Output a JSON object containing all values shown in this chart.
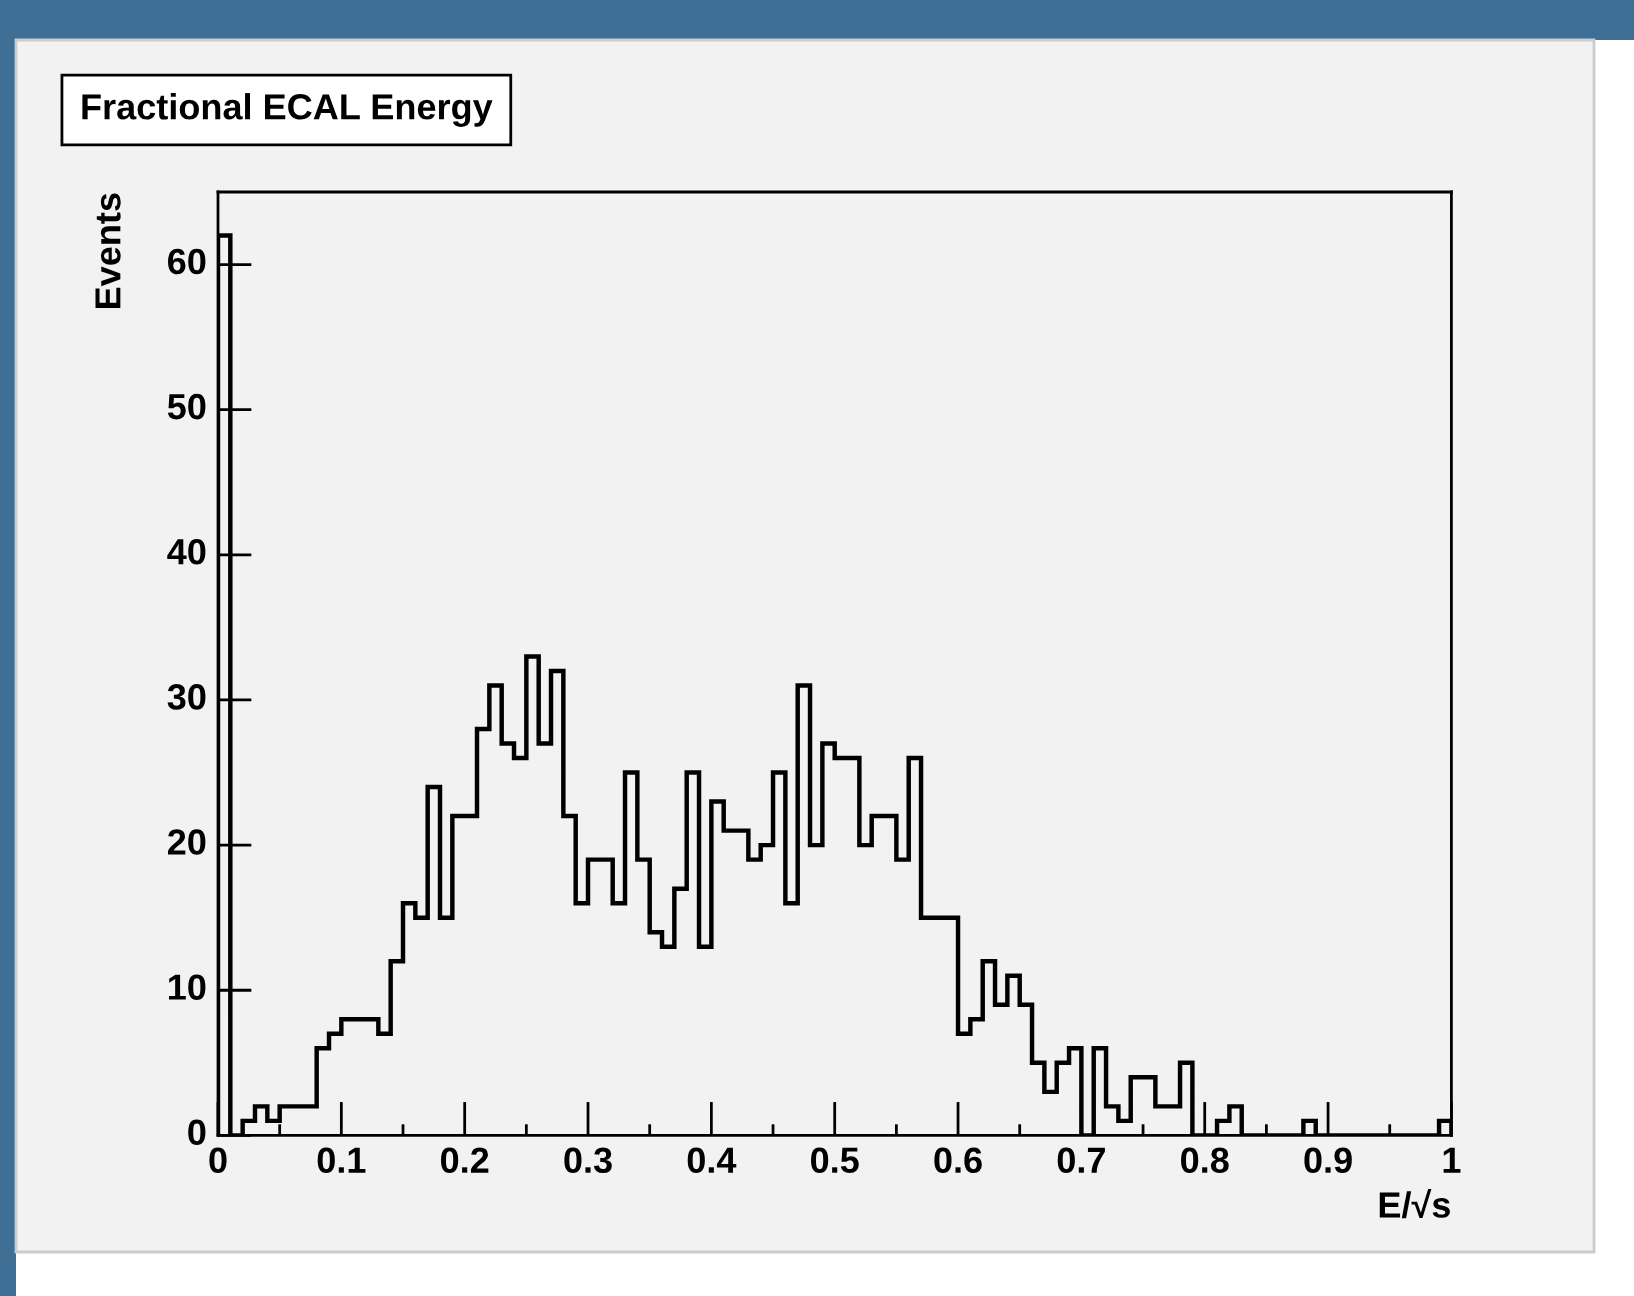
{
  "chart_data": {
    "type": "histogram",
    "title": "Fractional ECAL Energy",
    "xlabel": "E/√s",
    "ylabel": "Events",
    "color": "#000000",
    "bins": [
      0,
      0.01,
      0.02,
      0.03,
      0.04,
      0.05,
      0.06,
      0.07,
      0.08,
      0.09,
      0.1,
      0.11,
      0.12,
      0.13,
      0.14,
      0.15,
      0.16,
      0.17,
      0.18,
      0.19,
      0.2,
      0.21,
      0.22,
      0.23,
      0.24,
      0.25,
      0.26,
      0.27,
      0.28,
      0.29,
      0.3,
      0.31,
      0.32,
      0.33,
      0.34,
      0.35,
      0.36,
      0.37,
      0.38,
      0.39,
      0.4,
      0.41,
      0.42,
      0.43,
      0.44,
      0.45,
      0.46,
      0.47,
      0.48,
      0.49,
      0.5,
      0.51,
      0.52,
      0.53,
      0.54,
      0.55,
      0.56,
      0.57,
      0.58,
      0.59,
      0.6,
      0.61,
      0.62,
      0.63,
      0.64,
      0.65,
      0.66,
      0.67,
      0.68,
      0.69,
      0.7,
      0.71,
      0.72,
      0.73,
      0.74,
      0.75,
      0.76,
      0.77,
      0.78,
      0.79,
      0.8,
      0.81,
      0.82,
      0.83,
      0.84,
      0.85,
      0.86,
      0.87,
      0.88,
      0.89,
      0.9,
      0.91,
      0.92,
      0.93,
      0.94,
      0.95,
      0.96,
      0.97,
      0.98,
      0.99,
      1
    ],
    "values": [
      62,
      0,
      1,
      2,
      1,
      2,
      2,
      2,
      6,
      7,
      8,
      8,
      8,
      7,
      12,
      16,
      15,
      24,
      15,
      22,
      22,
      28,
      31,
      27,
      26,
      33,
      27,
      32,
      22,
      16,
      19,
      19,
      16,
      25,
      19,
      14,
      13,
      17,
      25,
      13,
      23,
      21,
      21,
      19,
      20,
      25,
      16,
      31,
      20,
      27,
      26,
      26,
      20,
      22,
      22,
      19,
      26,
      15,
      15,
      15,
      7,
      8,
      12,
      9,
      11,
      9,
      5,
      3,
      5,
      6,
      0,
      6,
      2,
      1,
      4,
      4,
      2,
      2,
      5,
      0,
      0,
      1,
      2,
      0,
      0,
      0,
      0,
      0,
      1,
      0,
      0,
      0,
      0,
      0,
      0,
      0,
      0,
      0,
      0,
      1
    ],
    "xlim": [
      0,
      1
    ],
    "ylim": [
      0,
      65
    ],
    "xticks": [
      0,
      {
        "value": 0.05,
        "label": null
      },
      0.1,
      {
        "value": 0.15,
        "label": null
      },
      0.2,
      {
        "value": 0.25,
        "label": null
      },
      0.3,
      {
        "value": 0.35,
        "label": null
      },
      0.4,
      {
        "value": 0.45,
        "label": null
      },
      0.5,
      {
        "value": 0.55,
        "label": null
      },
      0.6,
      {
        "value": 0.65,
        "label": null
      },
      0.7,
      {
        "value": 0.75,
        "label": null
      },
      0.8,
      {
        "value": 0.85,
        "label": null
      },
      0.9,
      {
        "value": 0.95,
        "label": null
      },
      1
    ],
    "yticks": [
      0,
      10,
      20,
      30,
      40,
      50,
      60
    ]
  }
}
